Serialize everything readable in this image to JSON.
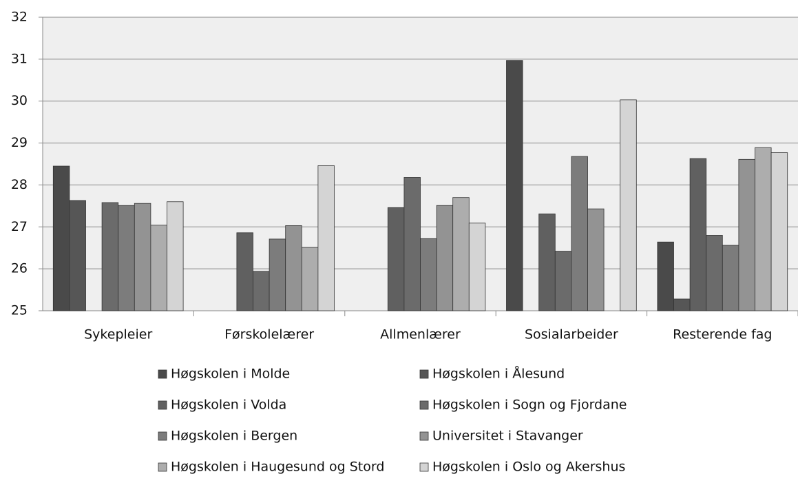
{
  "chart_data": {
    "type": "bar",
    "categories": [
      "Sykepleier",
      "Førskolelærer",
      "Allmenlærer",
      "Sosialarbeider",
      "Resterende fag"
    ],
    "series": [
      {
        "name": "Høgskolen i Molde",
        "color": "#4a4a4a",
        "values": [
          28.45,
          null,
          null,
          30.97,
          26.64
        ]
      },
      {
        "name": "Høgskolen i Ålesund",
        "color": "#565656",
        "values": [
          27.63,
          null,
          null,
          null,
          25.28
        ]
      },
      {
        "name": "Høgskolen i Volda",
        "color": "#606060",
        "values": [
          null,
          26.86,
          27.46,
          27.31,
          28.63
        ]
      },
      {
        "name": "Høgskolen i Sogn og Fjordane",
        "color": "#6b6b6b",
        "values": [
          27.58,
          25.94,
          28.18,
          26.42,
          26.8
        ]
      },
      {
        "name": "Høgskolen i Bergen",
        "color": "#7c7c7c",
        "values": [
          27.51,
          26.71,
          26.72,
          28.68,
          26.56
        ]
      },
      {
        "name": "Universitet i Stavanger",
        "color": "#939393",
        "values": [
          27.56,
          27.03,
          27.51,
          27.43,
          28.61
        ]
      },
      {
        "name": "Høgskolen i Haugesund og Stord",
        "color": "#adadad",
        "values": [
          27.04,
          26.51,
          27.7,
          null,
          28.89
        ]
      },
      {
        "name": "Høgskolen i Oslo og Akershus",
        "color": "#d4d4d4",
        "values": [
          27.6,
          28.46,
          27.09,
          30.03,
          28.77
        ]
      }
    ],
    "ylim": [
      25,
      32
    ],
    "yticks": [
      25,
      26,
      27,
      28,
      29,
      30,
      31,
      32
    ],
    "grid": true
  }
}
